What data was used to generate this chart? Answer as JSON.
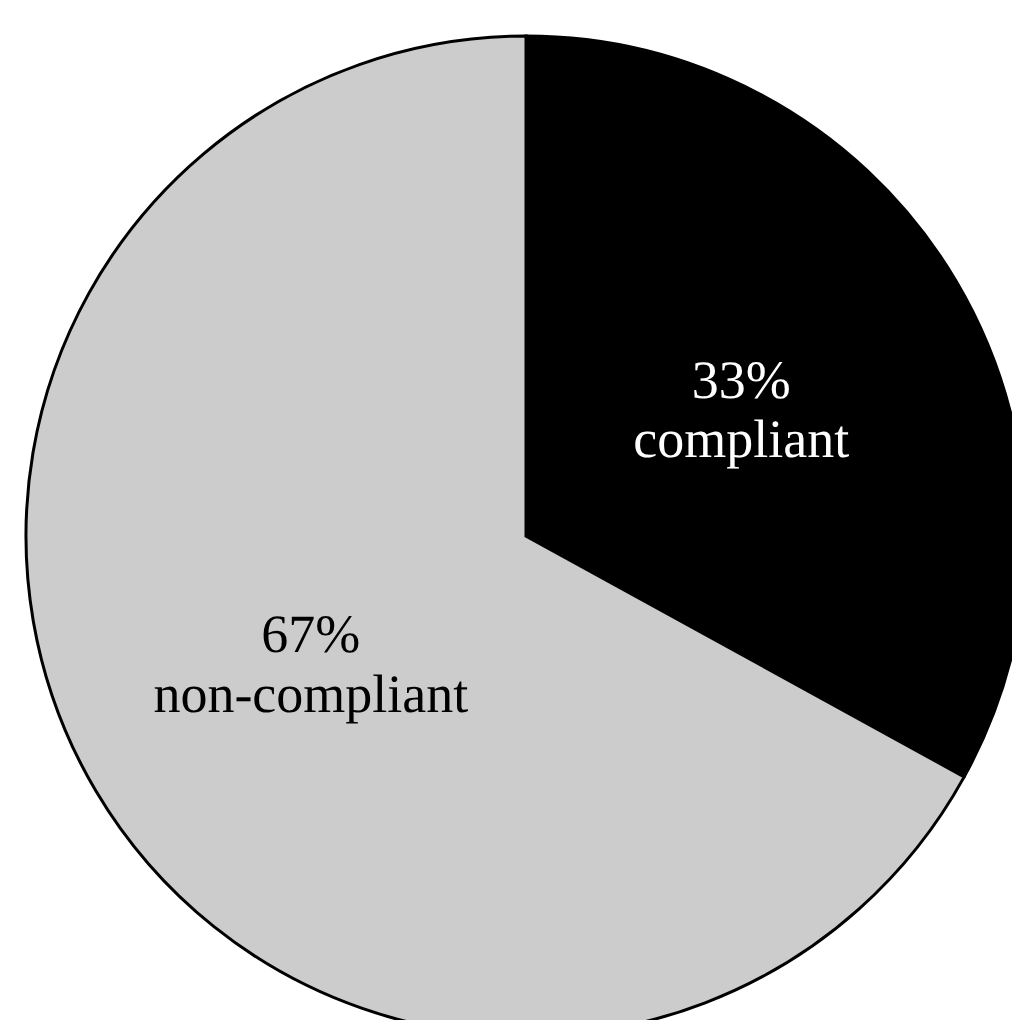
{
  "chart_data": {
    "type": "pie",
    "categories": [
      "compliant",
      "non-compliant"
    ],
    "values": [
      33,
      67
    ],
    "colors": [
      "#000000",
      "#cccccc"
    ],
    "value_labels": [
      "33%",
      "67%"
    ]
  }
}
